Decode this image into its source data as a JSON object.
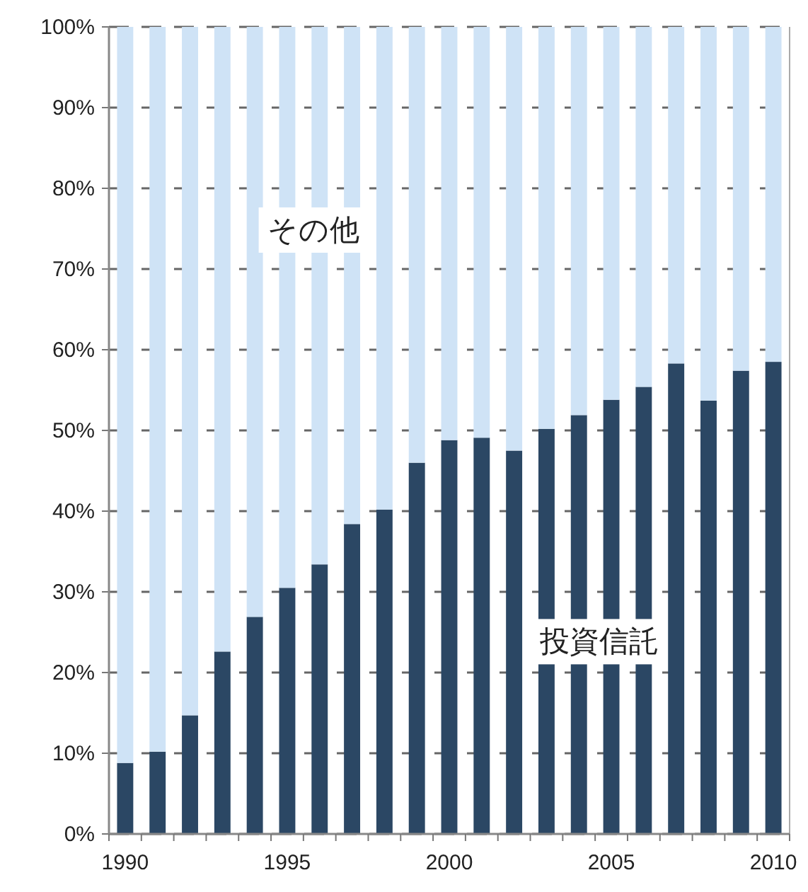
{
  "chart_data": {
    "type": "bar",
    "stacked": true,
    "legend": false,
    "grid": "y",
    "categories": [
      "1990",
      null,
      null,
      null,
      null,
      "1995",
      null,
      null,
      null,
      null,
      "2000",
      null,
      null,
      null,
      null,
      "2005",
      null,
      null,
      null,
      null,
      "2010"
    ],
    "series": [
      {
        "name": "投資信託",
        "color": "#2b4764",
        "values": [
          8.8,
          10.2,
          14.7,
          22.6,
          26.9,
          30.5,
          33.4,
          38.4,
          40.2,
          46.0,
          48.8,
          49.1,
          47.5,
          50.2,
          51.9,
          53.8,
          55.4,
          58.3,
          53.7,
          57.4,
          58.5
        ]
      },
      {
        "name": "その他",
        "color": "#cfe3f6",
        "values": [
          91.2,
          89.8,
          85.3,
          77.4,
          73.1,
          69.5,
          66.6,
          61.6,
          59.8,
          54.0,
          51.2,
          50.9,
          52.5,
          49.8,
          48.1,
          46.2,
          44.6,
          41.7,
          46.3,
          42.6,
          41.5
        ]
      }
    ],
    "ylim": [
      0,
      100
    ],
    "yticks": [
      {
        "value": 0,
        "label": "0%"
      },
      {
        "value": 10,
        "label": "10%"
      },
      {
        "value": 20,
        "label": "20%"
      },
      {
        "value": 30,
        "label": "30%"
      },
      {
        "value": 40,
        "label": "40%"
      },
      {
        "value": 50,
        "label": "50%"
      },
      {
        "value": 60,
        "label": "60%"
      },
      {
        "value": 70,
        "label": "70%"
      },
      {
        "value": 80,
        "label": "80%"
      },
      {
        "value": 90,
        "label": "90%"
      },
      {
        "value": 100,
        "label": "100%"
      }
    ]
  }
}
